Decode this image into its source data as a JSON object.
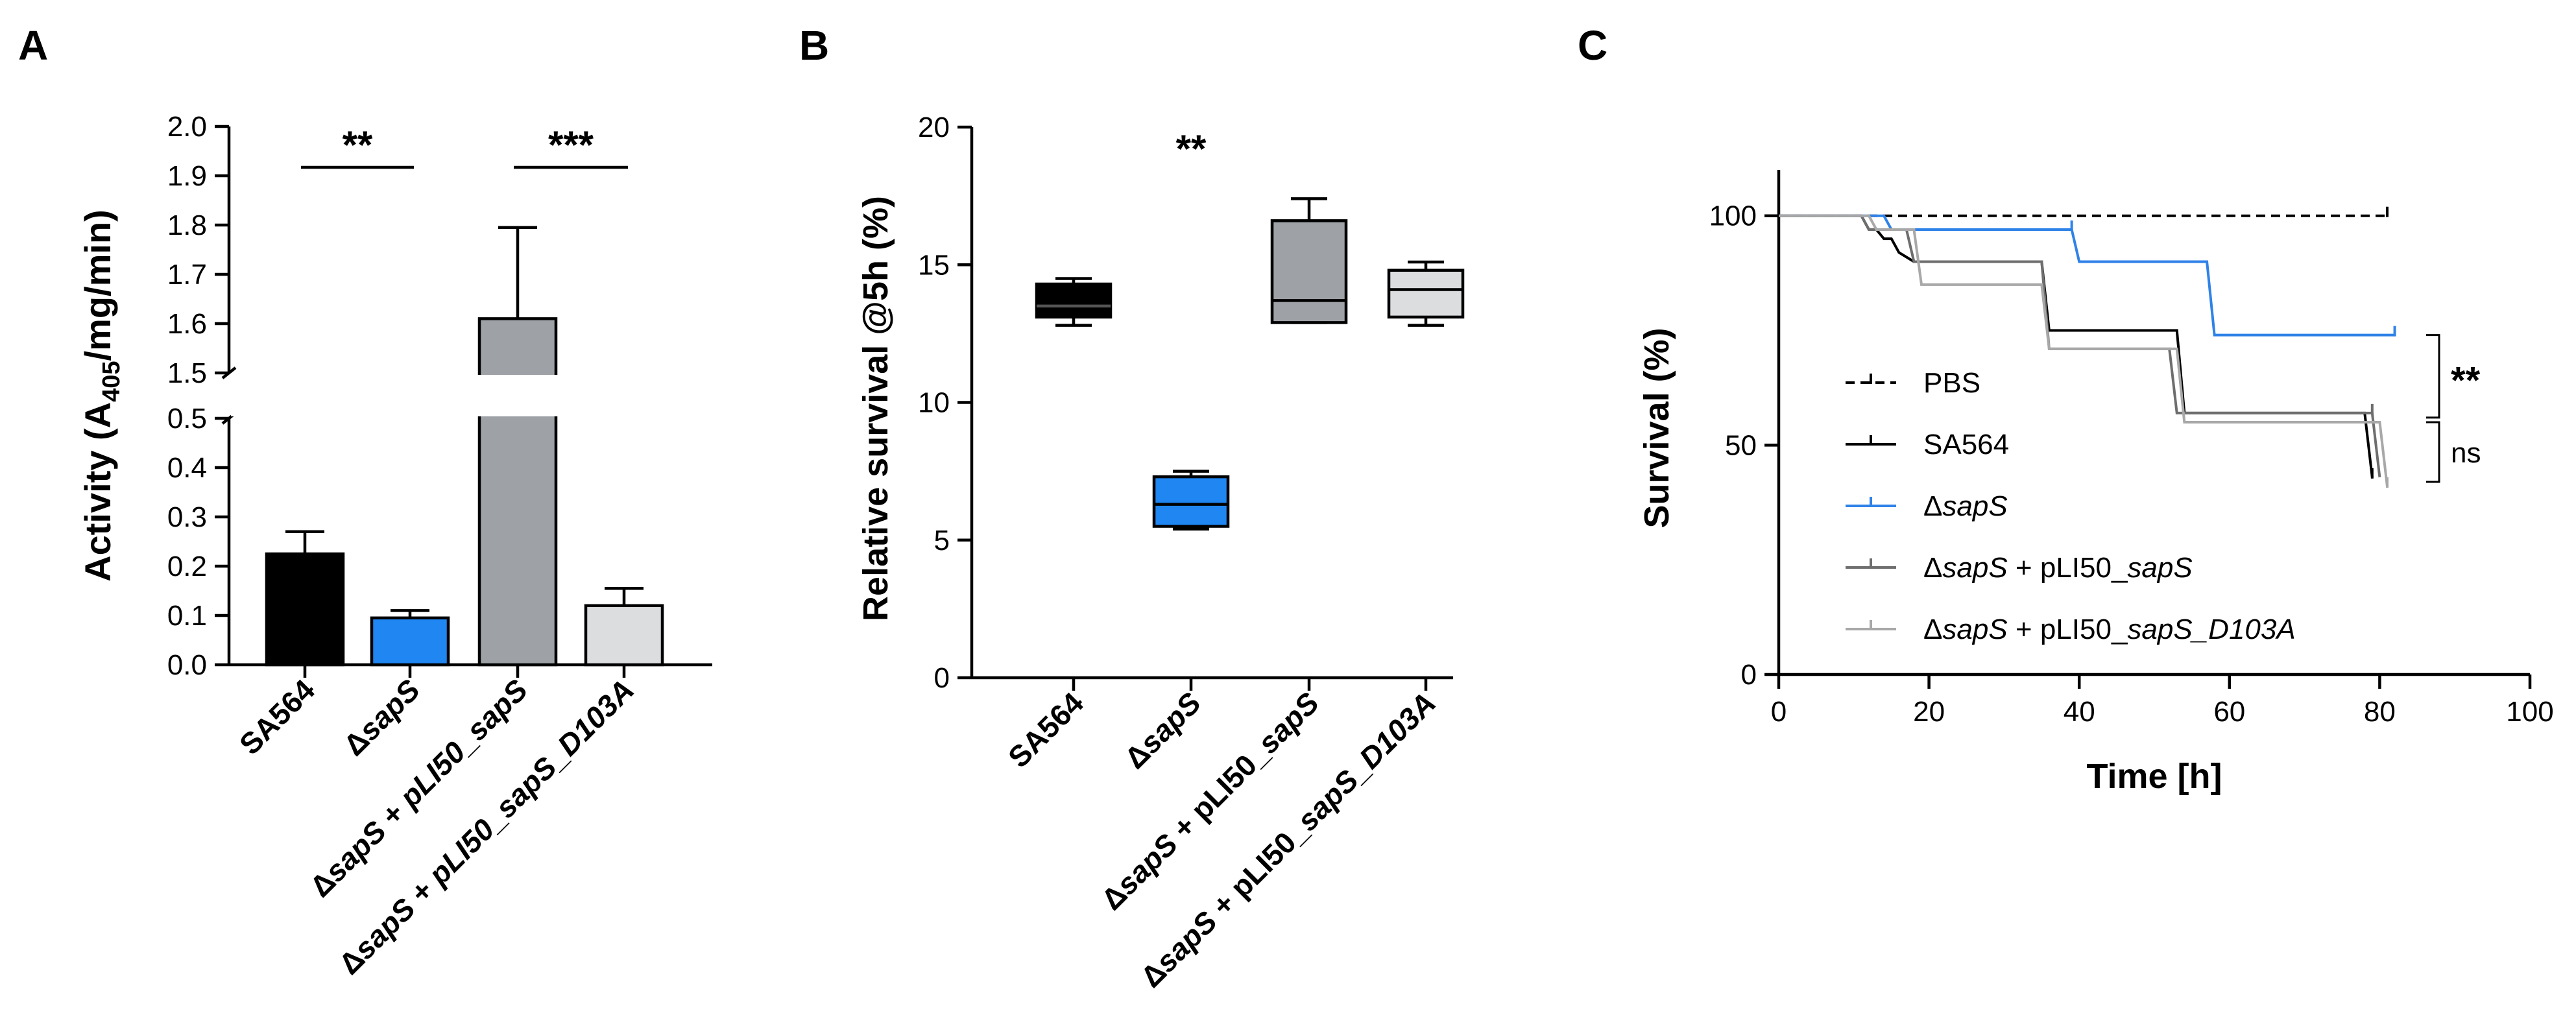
{
  "panels": {
    "a": "A",
    "b": "B",
    "c": "C"
  },
  "colors": {
    "black": "#000000",
    "blue": "#1f86f2",
    "dark_gray": "#9ea1a5",
    "light_gray": "#dcdddf",
    "ko_line": "#2f82e8",
    "comp_line": "#6e6e6e",
    "d103a_line": "#a8a8a8"
  },
  "chart_data": [
    {
      "panel": "A",
      "type": "bar",
      "ylabel": {
        "pre": "Activity (A",
        "sub": "405",
        "post": "/mg/min)"
      },
      "axis_break": {
        "lower": [
          0.0,
          0.5
        ],
        "upper": [
          1.5,
          2.0
        ]
      },
      "yticks_lower": [
        "0.0",
        "0.1",
        "0.2",
        "0.3",
        "0.4",
        "0.5"
      ],
      "yticks_upper": [
        "1.5",
        "1.6",
        "1.7",
        "1.8",
        "1.9",
        "2.0"
      ],
      "categories": [
        {
          "parts": [
            {
              "t": "SA564",
              "i": false
            }
          ]
        },
        {
          "parts": [
            {
              "t": "Δ",
              "i": false
            },
            {
              "t": "sapS",
              "i": true
            }
          ]
        },
        {
          "parts": [
            {
              "t": "Δ",
              "i": false
            },
            {
              "t": "sapS",
              "i": true
            },
            {
              "t": " + ",
              "i": false
            },
            {
              "t": "pLI50_sapS",
              "i": true
            }
          ]
        },
        {
          "parts": [
            {
              "t": "Δ",
              "i": false
            },
            {
              "t": "sapS",
              "i": true
            },
            {
              "t": " + ",
              "i": false
            },
            {
              "t": "pLI50_sapS_D103A",
              "i": true
            }
          ]
        }
      ],
      "values": [
        0.225,
        0.095,
        1.61,
        0.12
      ],
      "errors": [
        0.045,
        0.015,
        0.185,
        0.035
      ],
      "significance": [
        {
          "from": 0,
          "to": 1,
          "label": "**"
        },
        {
          "from": 2,
          "to": 3,
          "label": "***"
        }
      ]
    },
    {
      "panel": "B",
      "type": "box",
      "ylabel": "Relative survival @5h (%)",
      "ylim": [
        0,
        20
      ],
      "yticks": [
        "0",
        "5",
        "10",
        "15",
        "20"
      ],
      "categories": [
        {
          "parts": [
            {
              "t": "SA564",
              "i": false
            }
          ]
        },
        {
          "parts": [
            {
              "t": "Δ",
              "i": false
            },
            {
              "t": "sapS",
              "i": true
            }
          ]
        },
        {
          "parts": [
            {
              "t": "Δ",
              "i": false
            },
            {
              "t": "sapS",
              "i": true
            },
            {
              "t": " + pLI50_",
              "i": false
            },
            {
              "t": "sapS",
              "i": true
            }
          ]
        },
        {
          "parts": [
            {
              "t": "Δ",
              "i": false
            },
            {
              "t": "sapS",
              "i": true
            },
            {
              "t": " + pLI50_",
              "i": false
            },
            {
              "t": "sapS_D103A",
              "i": true
            }
          ]
        }
      ],
      "boxes": [
        {
          "min": 12.8,
          "q1": 13.1,
          "median": 13.5,
          "q3": 14.3,
          "max": 14.5
        },
        {
          "min": 5.4,
          "q1": 5.5,
          "median": 6.3,
          "q3": 7.3,
          "max": 7.5
        },
        {
          "min": 12.9,
          "q1": 12.9,
          "median": 13.7,
          "q3": 16.6,
          "max": 17.4
        },
        {
          "min": 12.8,
          "q1": 13.1,
          "median": 14.1,
          "q3": 14.8,
          "max": 15.1
        }
      ],
      "annotation": "**"
    },
    {
      "panel": "C",
      "type": "line",
      "subtype": "kaplan-meier",
      "xlabel": "Time [h]",
      "ylabel": "Survival (%)",
      "xlim": [
        0,
        100
      ],
      "ylim": [
        0,
        110
      ],
      "xticks": [
        "0",
        "20",
        "40",
        "60",
        "80",
        "100"
      ],
      "yticks": [
        "0",
        "50",
        "100"
      ],
      "series": [
        {
          "name": "PBS",
          "parts": [
            {
              "t": "PBS",
              "i": false
            }
          ],
          "style": "dashed",
          "color": "#000000",
          "x": [
            0,
            81
          ],
          "y": [
            100,
            100
          ],
          "censor": [
            81
          ]
        },
        {
          "name": "SA564",
          "parts": [
            {
              "t": "SA564",
              "i": false
            }
          ],
          "style": "solid",
          "color": "#000000",
          "x": [
            0,
            11,
            12,
            13,
            14,
            15,
            16,
            18,
            35,
            36,
            53,
            54,
            78,
            79
          ],
          "y": [
            100,
            100,
            97,
            97,
            95,
            95,
            92,
            90,
            90,
            75,
            75,
            57,
            57,
            43
          ],
          "censor": [
            79
          ]
        },
        {
          "name": "ΔsapS",
          "parts": [
            {
              "t": "Δ",
              "i": false
            },
            {
              "t": "sapS",
              "i": true
            }
          ],
          "style": "solid",
          "color": "#2f82e8",
          "x": [
            0,
            14,
            15,
            39,
            40,
            57,
            58,
            82
          ],
          "y": [
            100,
            100,
            97,
            97,
            90,
            90,
            74,
            74
          ],
          "censor": [
            39,
            82
          ]
        },
        {
          "name": "ΔsapS + pLI50_sapS",
          "parts": [
            {
              "t": "Δ",
              "i": false
            },
            {
              "t": "sapS",
              "i": true
            },
            {
              "t": " + pLI50_",
              "i": false
            },
            {
              "t": "sapS",
              "i": true
            }
          ],
          "style": "solid",
          "color": "#6e6e6e",
          "x": [
            0,
            11,
            12,
            17,
            18,
            35,
            36,
            52,
            53,
            79,
            80
          ],
          "y": [
            100,
            100,
            97,
            97,
            90,
            90,
            71,
            71,
            57,
            57,
            43
          ],
          "censor": [
            79
          ]
        },
        {
          "name": "ΔsapS + pLI50_sapS_D103A",
          "parts": [
            {
              "t": "Δ",
              "i": false
            },
            {
              "t": "sapS",
              "i": true
            },
            {
              "t": " + pLI50_",
              "i": false
            },
            {
              "t": "sapS_D103A",
              "i": true
            }
          ],
          "style": "solid",
          "color": "#a8a8a8",
          "x": [
            0,
            12,
            13,
            18,
            19,
            35,
            36,
            53,
            54,
            80,
            81
          ],
          "y": [
            100,
            100,
            97,
            97,
            85,
            85,
            71,
            71,
            55,
            55,
            41
          ],
          "censor": [
            81
          ]
        }
      ],
      "brackets": [
        {
          "label": "**"
        },
        {
          "label": "ns"
        }
      ]
    }
  ]
}
